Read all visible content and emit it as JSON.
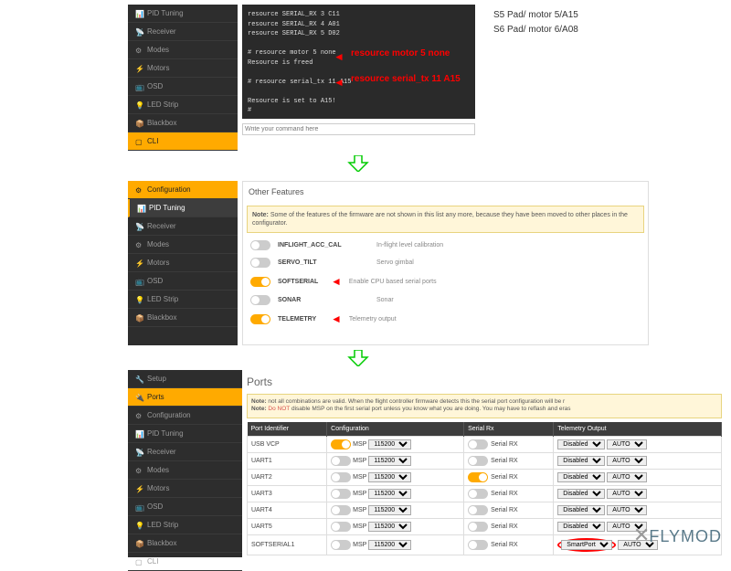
{
  "panel1": {
    "sidebar": [
      {
        "icon": "📊",
        "label": "PID Tuning",
        "active": false
      },
      {
        "icon": "📡",
        "label": "Receiver"
      },
      {
        "icon": "⚙",
        "label": "Modes"
      },
      {
        "icon": "⚡",
        "label": "Motors"
      },
      {
        "icon": "📺",
        "label": "OSD"
      },
      {
        "icon": "💡",
        "label": "LED Strip"
      },
      {
        "icon": "📦",
        "label": "Blackbox"
      },
      {
        "icon": "▢",
        "label": "CLI",
        "highlight": true
      }
    ],
    "cli_lines": [
      "resource SERIAL_RX 3 C11",
      "resource SERIAL_RX 4 A01",
      "resource SERIAL_RX 5 D02",
      "",
      "# resource motor 5 none",
      "Resource is freed",
      "",
      "# resource serial_tx 11 A15",
      "",
      "Resource is set to A15!",
      "#"
    ],
    "cli_placeholder": "Write your command here",
    "annot1": "resource motor 5 none",
    "annot2": "resource serial_tx 11 A15",
    "note1": "S5 Pad/ motor 5/A15",
    "note2": "S6 Pad/ motor 6/A08"
  },
  "panel2": {
    "sidebar": [
      {
        "icon": "⚙",
        "label": "Configuration",
        "highlight": true
      },
      {
        "icon": "📊",
        "label": "PID Tuning",
        "active": true
      },
      {
        "icon": "📡",
        "label": "Receiver"
      },
      {
        "icon": "⚙",
        "label": "Modes"
      },
      {
        "icon": "⚡",
        "label": "Motors"
      },
      {
        "icon": "📺",
        "label": "OSD"
      },
      {
        "icon": "💡",
        "label": "LED Strip"
      },
      {
        "icon": "📦",
        "label": "Blackbox"
      }
    ],
    "box_title": "Other Features",
    "note_prefix": "Note:",
    "note_text": "Some of the features of the firmware are not shown in this list any more, because they have been moved to other places in the configurator.",
    "features": [
      {
        "on": false,
        "name": "INFLIGHT_ACC_CAL",
        "desc": "In-flight level calibration"
      },
      {
        "on": false,
        "name": "SERVO_TILT",
        "desc": "Servo gimbal"
      },
      {
        "on": true,
        "name": "SOFTSERIAL",
        "desc": "Enable CPU based serial ports",
        "arrow": true
      },
      {
        "on": false,
        "name": "SONAR",
        "desc": "Sonar"
      },
      {
        "on": true,
        "name": "TELEMETRY",
        "desc": "Telemetry output",
        "arrow": true
      }
    ]
  },
  "panel3": {
    "sidebar": [
      {
        "icon": "🔧",
        "label": "Setup"
      },
      {
        "icon": "🔌",
        "label": "Ports",
        "highlight": true
      },
      {
        "icon": "⚙",
        "label": "Configuration"
      },
      {
        "icon": "📊",
        "label": "PID Tuning"
      },
      {
        "icon": "📡",
        "label": "Receiver"
      },
      {
        "icon": "⚙",
        "label": "Modes"
      },
      {
        "icon": "⚡",
        "label": "Motors"
      },
      {
        "icon": "📺",
        "label": "OSD"
      },
      {
        "icon": "💡",
        "label": "LED Strip"
      },
      {
        "icon": "📦",
        "label": "Blackbox"
      },
      {
        "icon": "▢",
        "label": "CLI"
      }
    ],
    "title": "Ports",
    "note1_prefix": "Note:",
    "note1": "not all combinations are valid. When the flight controller firmware detects this the serial port configuration will be r",
    "note2_prefix": "Note:",
    "note2a": "Do NOT",
    "note2b": "disable MSP on the first serial port unless you know what you are doing. You may have to reflash and eras",
    "headers": [
      "Port Identifier",
      "Configuration",
      "Serial Rx",
      "Telemetry Output"
    ],
    "rows": [
      {
        "id": "USB VCP",
        "msp": true,
        "baud": "115200",
        "srx": false,
        "srx_label": "Serial RX",
        "tel": "Disabled",
        "tel2": "AUTO"
      },
      {
        "id": "UART1",
        "msp": false,
        "baud": "115200",
        "srx": false,
        "srx_label": "Serial RX",
        "tel": "Disabled",
        "tel2": "AUTO"
      },
      {
        "id": "UART2",
        "msp": false,
        "baud": "115200",
        "srx": true,
        "srx_label": "Serial RX",
        "tel": "Disabled",
        "tel2": "AUTO"
      },
      {
        "id": "UART3",
        "msp": false,
        "baud": "115200",
        "srx": false,
        "srx_label": "Serial RX",
        "tel": "Disabled",
        "tel2": "AUTO"
      },
      {
        "id": "UART4",
        "msp": false,
        "baud": "115200",
        "srx": false,
        "srx_label": "Serial RX",
        "tel": "Disabled",
        "tel2": "AUTO"
      },
      {
        "id": "UART5",
        "msp": false,
        "baud": "115200",
        "srx": false,
        "srx_label": "Serial RX",
        "tel": "Disabled",
        "tel2": "AUTO"
      },
      {
        "id": "SOFTSERIAL1",
        "msp": false,
        "baud": "115200",
        "srx": false,
        "srx_label": "Serial RX",
        "tel": "SmartPort",
        "tel2": "AUTO",
        "circled": true
      }
    ],
    "msp_label": "MSP"
  },
  "arrow_color": "#00cc00",
  "flymod": "FLYMOD"
}
